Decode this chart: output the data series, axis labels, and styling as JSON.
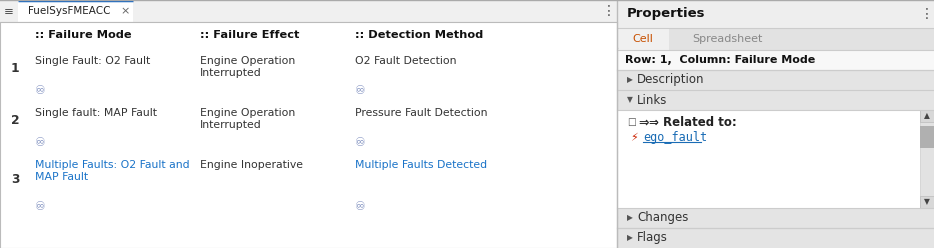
{
  "tab_label": "FuelSysFMEACC",
  "bg_color": "#f5f5f5",
  "table_bg": "#ffffff",
  "header_bg": "#eeeeee",
  "row1_bg": "#dce8f5",
  "row2_bg": "#ffffff",
  "row3_bg": "#ffffff",
  "empty_row_bg": "#ffffff",
  "col_headers": [
    "",
    ":: Failure Mode",
    ":: Failure Effect",
    ":: Detection Method"
  ],
  "rows": [
    {
      "num": "1",
      "failure_mode": "Single Fault: O2 Fault",
      "failure_mode_color": "#333333",
      "failure_effect": "Engine Operation\nInterrupted",
      "detection_method": "O2 Fault Detection",
      "detection_color": "#333333",
      "has_fm_link": true,
      "has_det_link": true
    },
    {
      "num": "2",
      "failure_mode": "Single fault: MAP Fault",
      "failure_mode_color": "#333333",
      "failure_effect": "Engine Operation\nInterrupted",
      "detection_method": "Pressure Fault Detection",
      "detection_color": "#333333",
      "has_fm_link": true,
      "has_det_link": true
    },
    {
      "num": "3",
      "failure_mode": "Multiple Faults: O2 Fault and\nMAP Fault",
      "failure_mode_color": "#1a73c8",
      "failure_effect": "Engine Inoperative",
      "detection_method": "Multiple Faults Detected",
      "detection_color": "#1a73c8",
      "has_fm_link": true,
      "has_det_link": true
    }
  ],
  "props_bg": "#eeeeee",
  "props_title": "Properties",
  "props_tab1": "Cell",
  "props_tab2": "Spreadsheet",
  "props_tab1_color": "#c85000",
  "props_tab2_color": "#888888",
  "props_row_col": "Row: 1,  Column: Failure Mode",
  "props_sections": [
    {
      "name": "Description",
      "expanded": false
    },
    {
      "name": "Links",
      "expanded": true
    },
    {
      "name": "Changes",
      "expanded": false
    },
    {
      "name": "Flags",
      "expanded": false
    }
  ],
  "links_header": "⇒ Related to:",
  "links_item": "ego_fault",
  "links_item_color": "#1a6cb5",
  "link_color": "#1a73c8",
  "divider_color": "#cccccc",
  "border_color": "#bbbbbb",
  "text_color": "#333333",
  "font_size": 7.8,
  "header_font_size": 8.2
}
